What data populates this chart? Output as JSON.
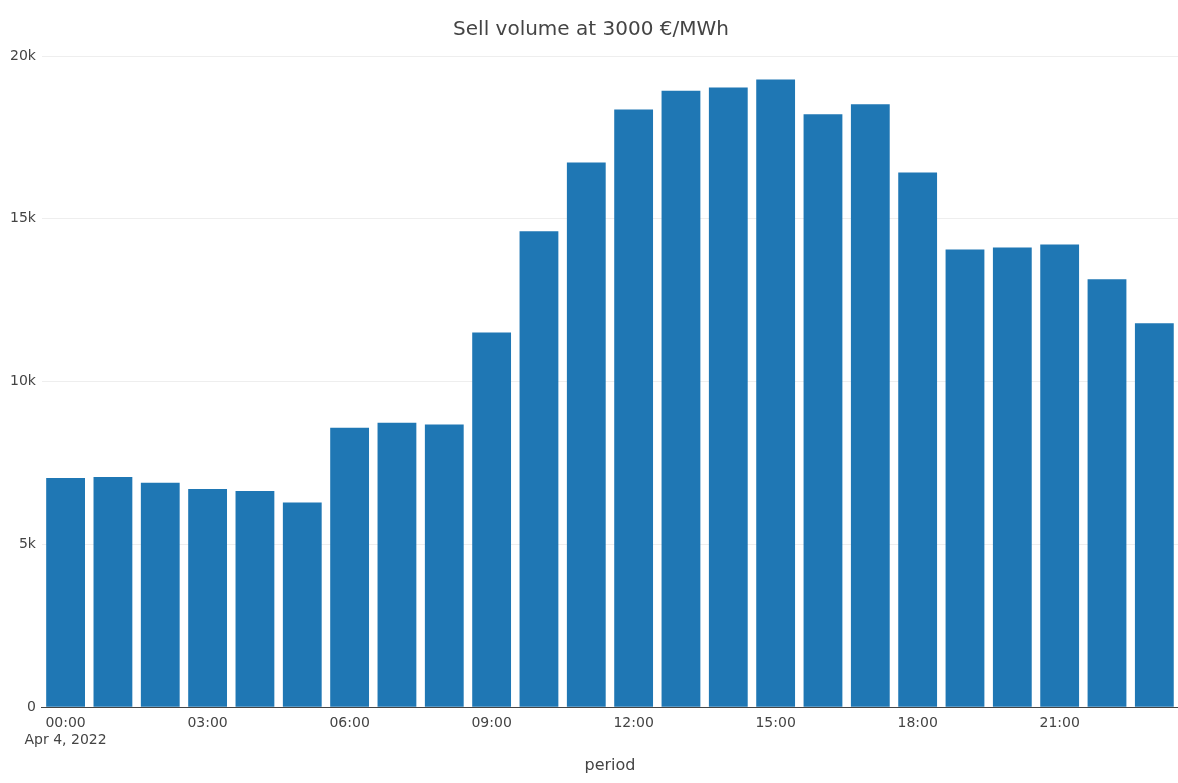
{
  "chart_data": {
    "type": "bar",
    "title": "Sell volume at 3000 €/MWh",
    "xlabel": "period",
    "x": [
      "2022-04-04T00:00",
      "2022-04-04T01:00",
      "2022-04-04T02:00",
      "2022-04-04T03:00",
      "2022-04-04T04:00",
      "2022-04-04T05:00",
      "2022-04-04T06:00",
      "2022-04-04T07:00",
      "2022-04-04T08:00",
      "2022-04-04T09:00",
      "2022-04-04T10:00",
      "2022-04-04T11:00",
      "2022-04-04T12:00",
      "2022-04-04T13:00",
      "2022-04-04T14:00",
      "2022-04-04T15:00",
      "2022-04-04T16:00",
      "2022-04-04T17:00",
      "2022-04-04T18:00",
      "2022-04-04T19:00",
      "2022-04-04T20:00",
      "2022-04-04T21:00",
      "2022-04-04T22:00",
      "2022-04-04T23:00"
    ],
    "values": [
      7040,
      7070,
      6890,
      6700,
      6640,
      6290,
      8580,
      8740,
      8680,
      11510,
      14620,
      16730,
      18360,
      18930,
      19030,
      19280,
      18210,
      18520,
      16420,
      14060,
      14120,
      14210,
      13140,
      11790
    ],
    "color": "#1f77b4",
    "xlim": [
      "2022-04-03T23:30",
      "2022-04-04T23:30"
    ],
    "xticks": [
      {
        "value": "2022-04-04T00:00",
        "label": "00:00\nApr 4, 2022"
      },
      {
        "value": "2022-04-04T03:00",
        "label": "03:00"
      },
      {
        "value": "2022-04-04T06:00",
        "label": "06:00"
      },
      {
        "value": "2022-04-04T09:00",
        "label": "09:00"
      },
      {
        "value": "2022-04-04T12:00",
        "label": "12:00"
      },
      {
        "value": "2022-04-04T15:00",
        "label": "15:00"
      },
      {
        "value": "2022-04-04T18:00",
        "label": "18:00"
      },
      {
        "value": "2022-04-04T21:00",
        "label": "21:00"
      }
    ],
    "ylim": [
      0,
      20000
    ],
    "yticks": [
      {
        "value": 0,
        "label": "0"
      },
      {
        "value": 5000,
        "label": "5k"
      },
      {
        "value": 10000,
        "label": "10k"
      },
      {
        "value": 15000,
        "label": "15k"
      },
      {
        "value": 20000,
        "label": "20k"
      }
    ],
    "grid": "y",
    "legend": false
  }
}
